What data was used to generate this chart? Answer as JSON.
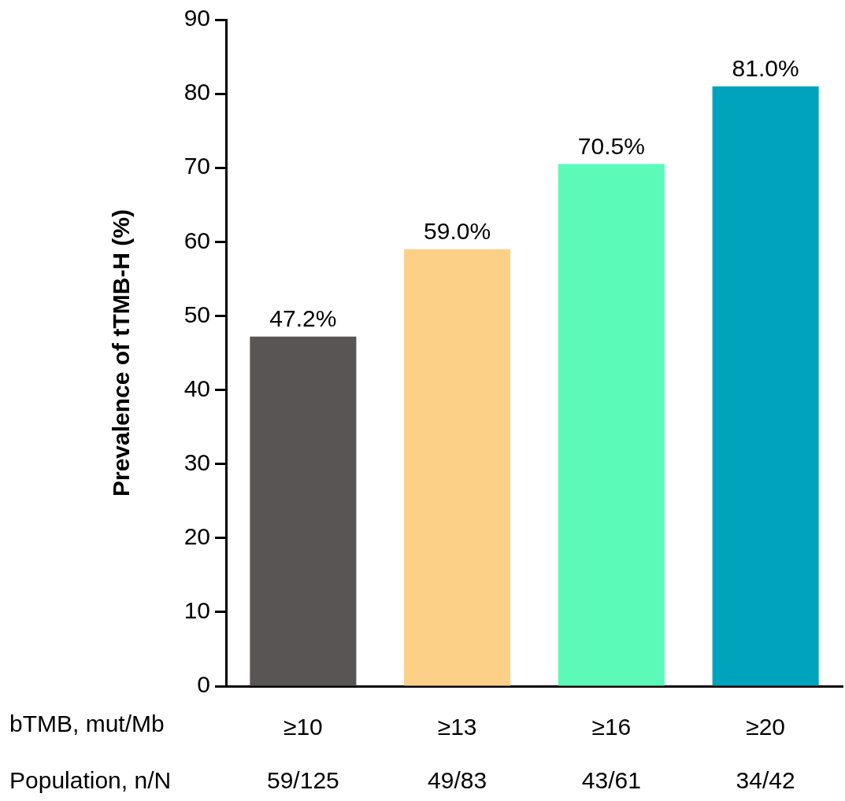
{
  "chart_data": {
    "type": "bar",
    "ylabel": "Prevalence of tTMB-H (%)",
    "xlabel": "bTMB, mut/Mb",
    "categories": [
      "≥10",
      "≥13",
      "≥16",
      "≥20"
    ],
    "values": [
      47.2,
      59.0,
      70.5,
      81.0
    ],
    "colors": [
      "#595555",
      "#fdd088",
      "#5bfab8",
      "#00a3bc"
    ],
    "value_labels": [
      "47.2%",
      "59.0%",
      "70.5%",
      "81.0%"
    ],
    "ylim": [
      0,
      90
    ],
    "yticks": [
      0,
      10,
      20,
      30,
      40,
      50,
      60,
      70,
      80,
      90
    ],
    "annotations": [
      "Population, n/N",
      "59/125",
      "49/83",
      "43/61",
      "34/42"
    ]
  }
}
